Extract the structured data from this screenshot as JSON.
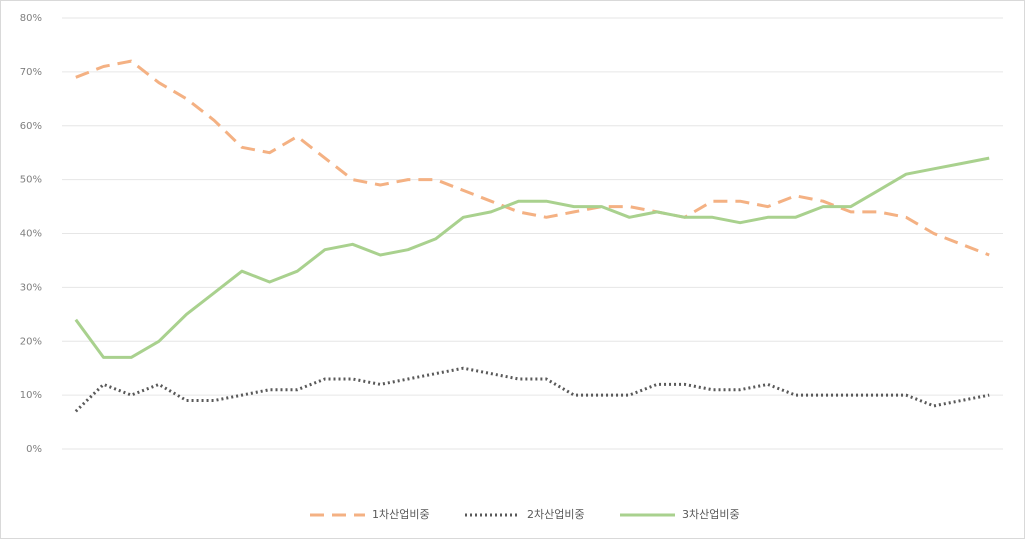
{
  "chart_data": {
    "type": "line",
    "categories": [
      null,
      null,
      null,
      null,
      null,
      null,
      null,
      null,
      null,
      null,
      null,
      null,
      null,
      null,
      null,
      null,
      null,
      null,
      null,
      null,
      null,
      null,
      null,
      null,
      null,
      null,
      null,
      null,
      null,
      null,
      null,
      null,
      null,
      null
    ],
    "series": [
      {
        "name": "1차산업비중",
        "color": "#f4b183",
        "style": "dashed",
        "values": [
          69,
          71,
          72,
          68,
          65,
          61,
          56,
          55,
          58,
          54,
          50,
          49,
          50,
          50,
          48,
          46,
          44,
          43,
          44,
          45,
          45,
          44,
          43,
          46,
          46,
          45,
          47,
          46,
          44,
          44,
          43,
          40,
          38,
          36
        ]
      },
      {
        "name": "2차산업비중",
        "color": "#595959",
        "style": "dotted",
        "values": [
          7,
          12,
          10,
          12,
          9,
          9,
          10,
          11,
          11,
          13,
          13,
          12,
          13,
          14,
          15,
          14,
          13,
          13,
          10,
          10,
          10,
          12,
          12,
          11,
          11,
          12,
          10,
          10,
          10,
          10,
          10,
          8,
          9,
          10
        ]
      },
      {
        "name": "3차산업비중",
        "color": "#a9d18e",
        "style": "solid",
        "values": [
          24,
          17,
          17,
          20,
          25,
          29,
          33,
          31,
          33,
          37,
          38,
          36,
          37,
          39,
          43,
          44,
          46,
          46,
          45,
          45,
          43,
          44,
          43,
          43,
          42,
          43,
          43,
          45,
          45,
          48,
          51,
          52,
          53,
          54
        ]
      }
    ],
    "ylim": [
      0,
      80
    ],
    "yticks": [
      {
        "value": 0,
        "label": "0%"
      },
      {
        "value": 10,
        "label": "10%"
      },
      {
        "value": 20,
        "label": "20%"
      },
      {
        "value": 30,
        "label": "30%"
      },
      {
        "value": 40,
        "label": "40%"
      },
      {
        "value": 50,
        "label": "50%"
      },
      {
        "value": 60,
        "label": "60%"
      },
      {
        "value": 70,
        "label": "70%"
      },
      {
        "value": 80,
        "label": "80%"
      }
    ],
    "grid": true,
    "legend": "bottom"
  }
}
